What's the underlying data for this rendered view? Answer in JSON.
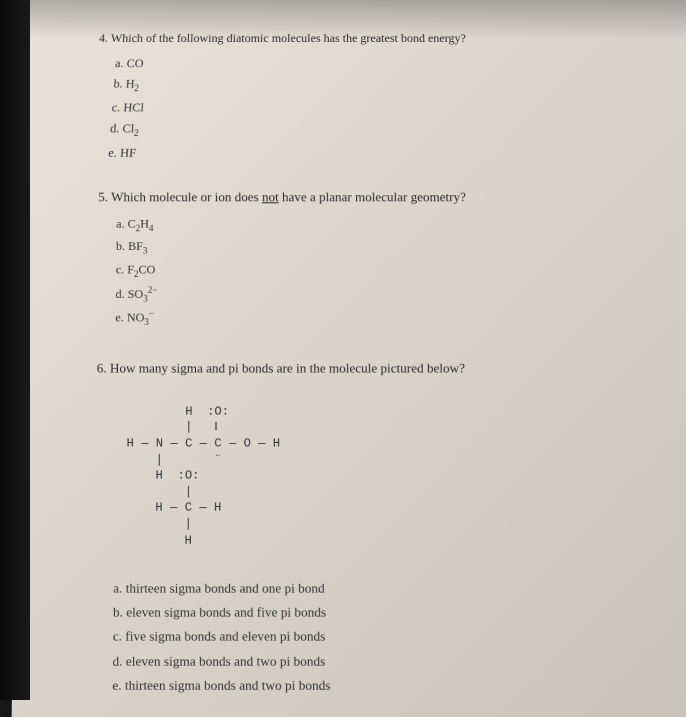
{
  "q4": {
    "number": "4.",
    "text": "Which of the following diatomic molecules has the greatest bond energy?",
    "options": {
      "a": "a. CO",
      "b_prefix": "b. H",
      "b_sub": "2",
      "c": "c. HCl",
      "d_prefix": "d. Cl",
      "d_sub": "2",
      "e": "e. HF"
    }
  },
  "q5": {
    "number": "5.",
    "text_before": "Which molecule or ion does ",
    "text_underline": "not",
    "text_after": " have a planar molecular geometry?",
    "options": {
      "a_prefix": "a. C",
      "a_sub1": "2",
      "a_mid": "H",
      "a_sub2": "4",
      "b_prefix": "b. BF",
      "b_sub": "3",
      "c_prefix": "c. F",
      "c_sub": "2",
      "c_suffix": "CO",
      "d_prefix": "d. SO",
      "d_sub": "3",
      "d_sup": "2−",
      "e_prefix": "e. NO",
      "e_sub": "3",
      "e_sup": "−"
    }
  },
  "q6": {
    "number": "6.",
    "text": "How many sigma and pi bonds are in the molecule pictured below?",
    "diagram_line1": "        H  :O:",
    "diagram_line2": "        |   ‖",
    "diagram_line3": "H — N — C — C — O — H",
    "diagram_line4": "    |       ¨",
    "diagram_line5": "    H  :O:",
    "diagram_line6": "        |",
    "diagram_line7": "    H — C — H",
    "diagram_line8": "        |",
    "diagram_line9": "        H",
    "options": {
      "a": "a. thirteen sigma bonds and one pi bond",
      "b": "b. eleven sigma bonds and five pi bonds",
      "c": "c. five sigma bonds and eleven pi bonds",
      "d": "d. eleven sigma bonds and two pi bonds",
      "e": "e. thirteen sigma bonds and two pi bonds"
    }
  }
}
